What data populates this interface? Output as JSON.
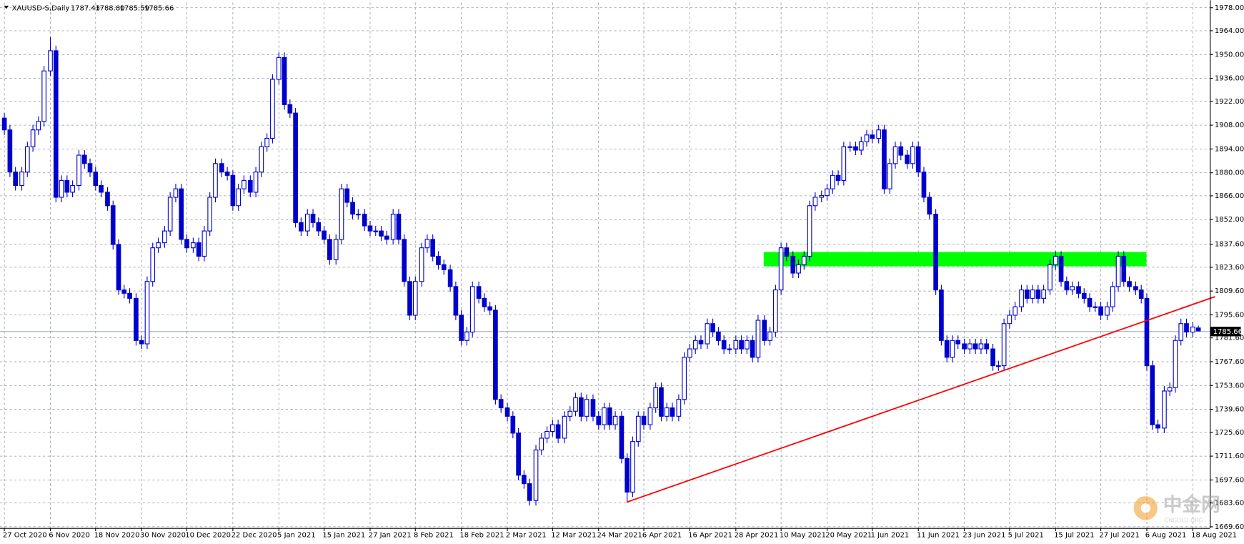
{
  "chart_data": {
    "type": "candlestick",
    "symbol": "XAUUSD-S,Daily",
    "quote_labels": [
      "1787.43",
      "1788.80",
      "1785.59",
      "1785.66"
    ],
    "watermark": "中金网",
    "watermark_sub": "CNGOLD.ORG",
    "color": "#0000cc",
    "grid": true,
    "ylim": [
      1668.7,
      1980.6
    ],
    "yticks": [
      {
        "value": 1978,
        "label": "1978.00"
      },
      {
        "value": 1964,
        "label": "1964.00"
      },
      {
        "value": 1950,
        "label": "1950.00"
      },
      {
        "value": 1936,
        "label": "1936.00"
      },
      {
        "value": 1922,
        "label": "1922.00"
      },
      {
        "value": 1908,
        "label": "1908.00"
      },
      {
        "value": 1894,
        "label": "1894.00"
      },
      {
        "value": 1880,
        "label": "1880.00"
      },
      {
        "value": 1866,
        "label": "1866.00"
      },
      {
        "value": 1852,
        "label": "1852.00"
      },
      {
        "value": 1837.6,
        "label": "1837.60"
      },
      {
        "value": 1823.6,
        "label": "1823.60"
      },
      {
        "value": 1809.6,
        "label": "1809.60"
      },
      {
        "value": 1795.6,
        "label": "1795.60"
      },
      {
        "value": 1781.6,
        "label": "1781.60"
      },
      {
        "value": 1767.6,
        "label": "1767.60"
      },
      {
        "value": 1753.6,
        "label": "1753.60"
      },
      {
        "value": 1739.6,
        "label": "1739.60"
      },
      {
        "value": 1725.6,
        "label": "1725.60"
      },
      {
        "value": 1711.6,
        "label": "1711.60"
      },
      {
        "value": 1697.6,
        "label": "1697.60"
      },
      {
        "value": 1683.6,
        "label": "1683.60"
      },
      {
        "value": 1669.6,
        "label": "1669.60"
      }
    ],
    "categories": [
      "27 Oct 2020",
      null,
      null,
      null,
      null,
      null,
      null,
      null,
      "6 Nov 2020",
      null,
      null,
      null,
      null,
      null,
      null,
      null,
      "18 Nov 2020",
      null,
      null,
      null,
      null,
      null,
      null,
      null,
      "30 Nov 2020",
      null,
      null,
      null,
      null,
      null,
      null,
      null,
      "10 Dec 2020",
      null,
      null,
      null,
      null,
      null,
      null,
      null,
      "22 Dec 2020",
      null,
      null,
      null,
      null,
      null,
      null,
      null,
      "5 Jan 2021",
      null,
      null,
      null,
      null,
      null,
      null,
      null,
      "15 Jan 2021",
      null,
      null,
      null,
      null,
      null,
      null,
      null,
      "27 Jan 2021",
      null,
      null,
      null,
      null,
      null,
      null,
      null,
      "8 Feb 2021",
      null,
      null,
      null,
      null,
      null,
      null,
      null,
      "18 Feb 2021",
      null,
      null,
      null,
      null,
      null,
      null,
      null,
      "2 Mar 2021",
      null,
      null,
      null,
      null,
      null,
      null,
      null,
      "12 Mar 2021",
      null,
      null,
      null,
      null,
      null,
      null,
      null,
      "24 Mar 2021",
      null,
      null,
      null,
      null,
      null,
      null,
      null,
      "6 Apr 2021",
      null,
      null,
      null,
      null,
      null,
      null,
      null,
      "16 Apr 2021",
      null,
      null,
      null,
      null,
      null,
      null,
      null,
      "28 Apr 2021",
      null,
      null,
      null,
      null,
      null,
      null,
      null,
      "10 May 2021",
      null,
      null,
      null,
      null,
      null,
      null,
      null,
      "20 May 2021",
      null,
      null,
      null,
      null,
      null,
      null,
      null,
      "1 Jun 2021",
      null,
      null,
      null,
      null,
      null,
      null,
      null,
      "11 Jun 2021",
      null,
      null,
      null,
      null,
      null,
      null,
      null,
      "23 Jun 2021",
      null,
      null,
      null,
      null,
      null,
      null,
      null,
      "5 Jul 2021",
      null,
      null,
      null,
      null,
      null,
      null,
      null,
      "15 Jul 2021",
      null,
      null,
      null,
      null,
      null,
      null,
      null,
      "27 Jul 2021",
      null,
      null,
      null,
      null,
      null,
      null,
      null,
      "6 Aug 2021",
      null,
      null,
      null,
      null,
      null,
      null,
      null,
      "18 Aug 2021",
      null
    ],
    "open": [
      1912,
      1905,
      1880,
      1872,
      1880,
      1895,
      1905,
      1910,
      1940,
      1952,
      1865,
      1875,
      1868,
      1872,
      1890,
      1885,
      1880,
      1872,
      1868,
      1860,
      1837,
      1810,
      1808,
      1805,
      1780,
      1778,
      1815,
      1835,
      1838,
      1845,
      1865,
      1870,
      1840,
      1835,
      1838,
      1830,
      1845,
      1865,
      1885,
      1880,
      1878,
      1860,
      1870,
      1875,
      1868,
      1880,
      1895,
      1900,
      1935,
      1948,
      1920,
      1915,
      1850,
      1845,
      1855,
      1850,
      1845,
      1840,
      1828,
      1840,
      1870,
      1862,
      1855,
      1855,
      1848,
      1845,
      1845,
      1842,
      1840,
      1855,
      1840,
      1815,
      1795,
      1815,
      1835,
      1840,
      1830,
      1825,
      1822,
      1812,
      1795,
      1780,
      1785,
      1812,
      1805,
      1800,
      1798,
      1745,
      1740,
      1735,
      1725,
      1700,
      1695,
      1685,
      1715,
      1722,
      1726,
      1730,
      1722,
      1735,
      1738,
      1746,
      1735,
      1745,
      1735,
      1730,
      1740,
      1730,
      1735,
      1710,
      1690,
      1720,
      1735,
      1730,
      1740,
      1752,
      1735,
      1740,
      1735,
      1745,
      1770,
      1775,
      1780,
      1778,
      1790,
      1785,
      1780,
      1775,
      1775,
      1780,
      1775,
      1780,
      1770,
      1792,
      1780,
      1785,
      1810,
      1835,
      1830,
      1820,
      1825,
      1830,
      1860,
      1865,
      1866,
      1870,
      1878,
      1875,
      1895,
      1895,
      1893,
      1898,
      1902,
      1900,
      1905,
      1870,
      1885,
      1895,
      1890,
      1885,
      1895,
      1880,
      1865,
      1855,
      1810,
      1780,
      1770,
      1780,
      1778,
      1775,
      1778,
      1775,
      1778,
      1775,
      1765,
      1765,
      1790,
      1795,
      1800,
      1810,
      1805,
      1810,
      1805,
      1810,
      1825,
      1830,
      1815,
      1810,
      1812,
      1808,
      1805,
      1800,
      1800,
      1795,
      1800,
      1812,
      1830,
      1815,
      1812,
      1810,
      1805,
      1765,
      1730,
      1728,
      1750,
      1752,
      1780,
      1790,
      1785,
      1787.43
    ],
    "high": [
      1915,
      1908,
      1883,
      1883,
      1898,
      1908,
      1913,
      1943,
      1960,
      1955,
      1878,
      1878,
      1875,
      1893,
      1893,
      1888,
      1883,
      1875,
      1871,
      1863,
      1840,
      1813,
      1811,
      1808,
      1783,
      1818,
      1838,
      1841,
      1848,
      1868,
      1873,
      1873,
      1843,
      1841,
      1841,
      1848,
      1868,
      1888,
      1888,
      1883,
      1881,
      1873,
      1878,
      1878,
      1883,
      1898,
      1903,
      1938,
      1951,
      1951,
      1923,
      1918,
      1853,
      1858,
      1858,
      1853,
      1848,
      1843,
      1843,
      1873,
      1873,
      1865,
      1858,
      1858,
      1851,
      1848,
      1848,
      1845,
      1858,
      1858,
      1843,
      1818,
      1818,
      1838,
      1843,
      1843,
      1833,
      1828,
      1825,
      1815,
      1798,
      1788,
      1815,
      1815,
      1808,
      1803,
      1801,
      1748,
      1743,
      1738,
      1728,
      1703,
      1698,
      1718,
      1725,
      1729,
      1733,
      1733,
      1738,
      1741,
      1749,
      1749,
      1748,
      1748,
      1738,
      1743,
      1743,
      1738,
      1738,
      1713,
      1723,
      1738,
      1738,
      1743,
      1755,
      1755,
      1743,
      1743,
      1748,
      1773,
      1778,
      1783,
      1783,
      1793,
      1793,
      1788,
      1783,
      1778,
      1783,
      1783,
      1783,
      1783,
      1795,
      1795,
      1788,
      1813,
      1838,
      1838,
      1833,
      1828,
      1833,
      1863,
      1868,
      1869,
      1873,
      1881,
      1881,
      1898,
      1898,
      1898,
      1901,
      1905,
      1905,
      1908,
      1908,
      1888,
      1898,
      1898,
      1893,
      1898,
      1898,
      1883,
      1868,
      1858,
      1813,
      1783,
      1783,
      1783,
      1781,
      1781,
      1781,
      1781,
      1781,
      1778,
      1768,
      1793,
      1798,
      1803,
      1813,
      1813,
      1813,
      1813,
      1813,
      1828,
      1833,
      1833,
      1818,
      1815,
      1815,
      1811,
      1808,
      1803,
      1803,
      1803,
      1815,
      1833,
      1833,
      1818,
      1815,
      1813,
      1808,
      1768,
      1733,
      1753,
      1755,
      1783,
      1793,
      1793,
      1791,
      1788.8
    ],
    "low": [
      1902,
      1877,
      1869,
      1869,
      1877,
      1892,
      1902,
      1907,
      1937,
      1862,
      1862,
      1865,
      1865,
      1869,
      1882,
      1877,
      1869,
      1865,
      1857,
      1834,
      1807,
      1805,
      1802,
      1777,
      1775,
      1775,
      1812,
      1832,
      1835,
      1842,
      1862,
      1837,
      1832,
      1832,
      1827,
      1827,
      1842,
      1862,
      1877,
      1875,
      1857,
      1857,
      1867,
      1865,
      1865,
      1877,
      1892,
      1897,
      1932,
      1917,
      1912,
      1847,
      1842,
      1842,
      1847,
      1842,
      1837,
      1825,
      1825,
      1837,
      1859,
      1852,
      1852,
      1845,
      1842,
      1842,
      1839,
      1837,
      1837,
      1837,
      1812,
      1792,
      1792,
      1812,
      1832,
      1827,
      1822,
      1819,
      1809,
      1792,
      1777,
      1777,
      1782,
      1802,
      1797,
      1795,
      1742,
      1737,
      1732,
      1722,
      1697,
      1692,
      1682,
      1682,
      1712,
      1719,
      1723,
      1719,
      1719,
      1732,
      1735,
      1732,
      1732,
      1732,
      1727,
      1727,
      1727,
      1727,
      1707,
      1684,
      1687,
      1717,
      1727,
      1727,
      1737,
      1732,
      1732,
      1732,
      1732,
      1742,
      1767,
      1772,
      1775,
      1775,
      1782,
      1777,
      1772,
      1772,
      1772,
      1772,
      1772,
      1767,
      1767,
      1777,
      1777,
      1782,
      1807,
      1827,
      1817,
      1817,
      1822,
      1827,
      1857,
      1862,
      1863,
      1867,
      1872,
      1872,
      1892,
      1890,
      1890,
      1895,
      1897,
      1897,
      1867,
      1867,
      1882,
      1887,
      1882,
      1882,
      1877,
      1862,
      1852,
      1807,
      1777,
      1767,
      1767,
      1775,
      1772,
      1772,
      1772,
      1772,
      1772,
      1762,
      1762,
      1762,
      1787,
      1792,
      1797,
      1802,
      1802,
      1802,
      1802,
      1807,
      1822,
      1812,
      1807,
      1807,
      1805,
      1802,
      1797,
      1797,
      1792,
      1792,
      1797,
      1809,
      1812,
      1809,
      1807,
      1802,
      1762,
      1727,
      1725,
      1725,
      1747,
      1749,
      1777,
      1782,
      1782,
      1785.59
    ],
    "close": [
      1905,
      1880,
      1872,
      1880,
      1895,
      1905,
      1910,
      1940,
      1952,
      1865,
      1875,
      1868,
      1872,
      1890,
      1885,
      1880,
      1872,
      1868,
      1860,
      1837,
      1810,
      1808,
      1805,
      1780,
      1778,
      1815,
      1835,
      1838,
      1845,
      1865,
      1870,
      1840,
      1835,
      1838,
      1830,
      1845,
      1865,
      1885,
      1880,
      1878,
      1860,
      1870,
      1875,
      1868,
      1880,
      1895,
      1900,
      1935,
      1948,
      1920,
      1915,
      1850,
      1845,
      1855,
      1850,
      1845,
      1840,
      1828,
      1840,
      1870,
      1862,
      1855,
      1855,
      1848,
      1845,
      1845,
      1842,
      1840,
      1855,
      1840,
      1815,
      1795,
      1815,
      1835,
      1840,
      1830,
      1825,
      1822,
      1812,
      1795,
      1780,
      1785,
      1812,
      1805,
      1800,
      1798,
      1745,
      1740,
      1735,
      1725,
      1700,
      1695,
      1685,
      1715,
      1722,
      1726,
      1730,
      1722,
      1735,
      1738,
      1746,
      1735,
      1745,
      1735,
      1730,
      1740,
      1730,
      1735,
      1710,
      1690,
      1720,
      1735,
      1730,
      1740,
      1752,
      1735,
      1740,
      1735,
      1745,
      1770,
      1775,
      1780,
      1778,
      1790,
      1785,
      1780,
      1775,
      1775,
      1780,
      1775,
      1780,
      1770,
      1792,
      1780,
      1785,
      1810,
      1835,
      1830,
      1820,
      1825,
      1830,
      1860,
      1865,
      1866,
      1870,
      1878,
      1875,
      1895,
      1895,
      1893,
      1898,
      1902,
      1900,
      1905,
      1870,
      1885,
      1895,
      1890,
      1885,
      1895,
      1880,
      1865,
      1855,
      1810,
      1780,
      1770,
      1780,
      1778,
      1775,
      1778,
      1775,
      1778,
      1775,
      1765,
      1765,
      1790,
      1795,
      1800,
      1810,
      1805,
      1810,
      1805,
      1810,
      1825,
      1830,
      1815,
      1810,
      1812,
      1808,
      1805,
      1800,
      1800,
      1795,
      1800,
      1812,
      1830,
      1815,
      1812,
      1810,
      1805,
      1765,
      1730,
      1728,
      1750,
      1752,
      1780,
      1790,
      1785,
      1788,
      1785.66
    ],
    "trendline": {
      "color": "#ff0000",
      "x": [
        109,
        212
      ],
      "values": [
        1684,
        1806
      ]
    },
    "zone": {
      "color": "#00ff00",
      "x": [
        133,
        200
      ],
      "values": [
        1824,
        1832.5
      ]
    }
  }
}
